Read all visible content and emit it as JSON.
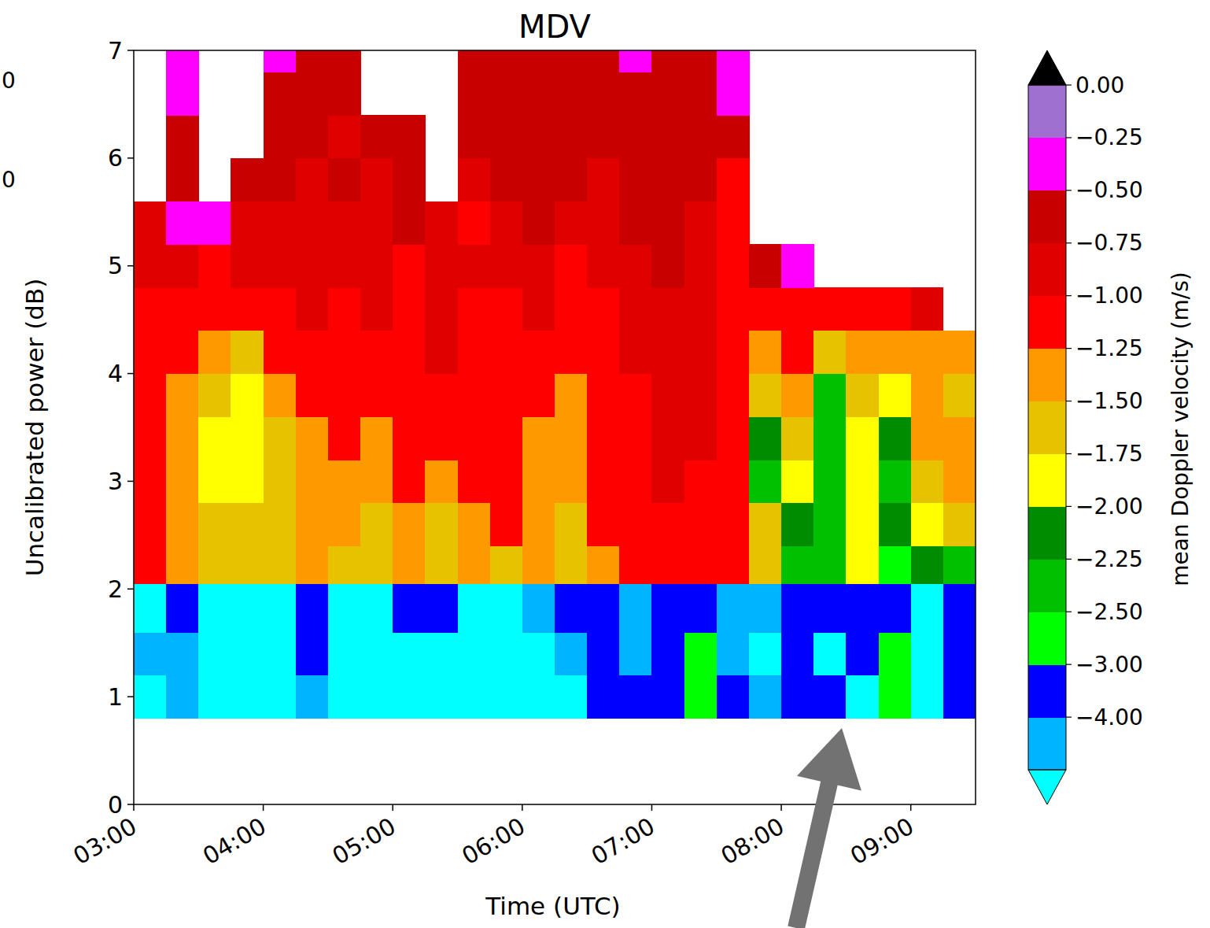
{
  "chart_data": {
    "type": "heatmap",
    "title": "MDV",
    "x_label": "Time (UTC)",
    "y_label": "Uncalibrated power (dB)",
    "xlim": [
      3,
      9.5
    ],
    "ylim": [
      0,
      7
    ],
    "xticks": [
      {
        "value": 3,
        "label": "03:00"
      },
      {
        "value": 4,
        "label": "04:00"
      },
      {
        "value": 5,
        "label": "05:00"
      },
      {
        "value": 6,
        "label": "06:00"
      },
      {
        "value": 7,
        "label": "07:00"
      },
      {
        "value": 8,
        "label": "08:00"
      },
      {
        "value": 9,
        "label": "09:00"
      }
    ],
    "yticks": [
      0,
      1,
      2,
      3,
      4,
      5,
      6,
      7
    ],
    "x_edges": [
      3,
      3.25,
      3.5,
      3.75,
      4,
      4.25,
      4.5,
      4.75,
      5,
      5.25,
      5.5,
      5.75,
      6,
      6.25,
      6.5,
      6.75,
      7,
      7.25,
      7.5,
      7.75,
      8,
      8.25,
      8.5,
      8.75,
      9,
      9.25,
      9.5
    ],
    "y_edges": [
      0.8,
      1.2,
      1.6,
      2.05,
      2.4,
      2.8,
      3.2,
      3.6,
      4.0,
      4.4,
      4.8,
      5.2,
      5.6,
      6.0,
      6.4,
      6.8,
      7.0
    ],
    "cells": [
      [
        -5.5,
        -4.5,
        -5.5,
        -5.5,
        -5.5,
        -4.5,
        -5.5,
        -5.5,
        -5.5,
        -5.5,
        -5.5,
        -5.5,
        -5.5,
        -5.5,
        -3.5,
        -3.5,
        -3.5,
        -2.75,
        -3.5,
        -4.5,
        -3.5,
        -3.5,
        -5.5,
        -2.75,
        -5.5,
        -3.5
      ],
      [
        -4.5,
        -4.5,
        -5.5,
        -5.5,
        -5.5,
        -3.5,
        -5.5,
        -5.5,
        -5.5,
        -5.5,
        -5.5,
        -5.5,
        -5.5,
        -4.5,
        -3.5,
        -4.5,
        -3.5,
        -2.75,
        -4.5,
        -5.5,
        -3.5,
        -5.5,
        -3.5,
        -2.75,
        -5.5,
        -3.5
      ],
      [
        -5.5,
        -3.5,
        -5.5,
        -5.5,
        -5.5,
        -3.5,
        -5.5,
        -5.5,
        -3.5,
        -3.5,
        -5.5,
        -5.5,
        -4.5,
        -3.5,
        -3.5,
        -4.5,
        -3.5,
        -3.5,
        -4.5,
        -4.5,
        -3.5,
        -3.5,
        -3.5,
        -3.5,
        -5.5,
        -3.5
      ],
      [
        -1.1,
        -1.4,
        -1.6,
        -1.6,
        -1.6,
        -1.4,
        -1.6,
        -1.6,
        -1.4,
        -1.6,
        -1.4,
        -1.6,
        -1.4,
        -1.6,
        -1.4,
        -1.1,
        -1.1,
        -1.1,
        -1.1,
        -1.6,
        -2.4,
        -2.4,
        -1.9,
        -2.75,
        -2.1,
        -2.4
      ],
      [
        -1.1,
        -1.4,
        -1.6,
        -1.6,
        -1.6,
        -1.4,
        -1.4,
        -1.6,
        -1.4,
        -1.6,
        -1.4,
        -1.1,
        -1.4,
        -1.6,
        -1.1,
        -1.1,
        -1.1,
        -1.1,
        -1.1,
        -1.6,
        -2.1,
        -2.4,
        -1.9,
        -2.1,
        -1.9,
        -1.6
      ],
      [
        -1.1,
        -1.4,
        -1.9,
        -1.9,
        -1.6,
        -1.4,
        -1.4,
        -1.4,
        -1.1,
        -1.4,
        -1.1,
        -1.1,
        -1.4,
        -1.4,
        -1.1,
        -1.1,
        -0.9,
        -1.1,
        -1.1,
        -2.4,
        -1.9,
        -2.4,
        -1.9,
        -2.4,
        -1.6,
        -1.4
      ],
      [
        -1.1,
        -1.4,
        -1.9,
        -1.9,
        -1.6,
        -1.4,
        -1.1,
        -1.4,
        -1.1,
        -1.1,
        -1.1,
        -1.1,
        -1.4,
        -1.4,
        -1.1,
        -1.1,
        -0.9,
        -0.9,
        -1.1,
        -2.1,
        -1.6,
        -2.4,
        -1.9,
        -2.1,
        -1.4,
        -1.4
      ],
      [
        -1.1,
        -1.4,
        -1.6,
        -1.9,
        -1.4,
        -1.1,
        -1.1,
        -1.1,
        -1.1,
        -1.1,
        -1.1,
        -1.1,
        -1.1,
        -1.4,
        -1.1,
        -1.1,
        -0.9,
        -0.9,
        -1.1,
        -1.6,
        -1.4,
        -2.4,
        -1.6,
        -1.9,
        -1.4,
        -1.6
      ],
      [
        -1.1,
        -1.1,
        -1.4,
        -1.6,
        -1.1,
        -1.1,
        -1.1,
        -1.1,
        -1.1,
        -0.9,
        -1.1,
        -1.1,
        -1.1,
        -1.1,
        -1.1,
        -0.9,
        -0.9,
        -0.9,
        -1.1,
        -1.4,
        -1.1,
        -1.6,
        -1.4,
        -1.4,
        -1.4,
        -1.4
      ],
      [
        -1.1,
        -1.1,
        -1.1,
        -1.1,
        -1.1,
        -0.9,
        -1.1,
        -0.9,
        -1.1,
        -0.9,
        -1.1,
        -1.1,
        -0.9,
        -1.1,
        -1.1,
        -0.9,
        -0.9,
        -0.9,
        -1.1,
        -1.1,
        -1.1,
        -1.1,
        -1.1,
        -1.1,
        -0.9,
        null
      ],
      [
        -0.9,
        -0.9,
        -1.1,
        -0.9,
        -0.9,
        -0.9,
        -0.9,
        -0.9,
        -1.1,
        -0.9,
        -0.9,
        -0.9,
        -0.9,
        -1.1,
        -0.9,
        -0.9,
        -0.6,
        -0.9,
        -1.1,
        -0.6,
        -0.4,
        null,
        null,
        null,
        null,
        null
      ],
      [
        -0.9,
        -0.4,
        -0.4,
        -0.9,
        -0.9,
        -0.9,
        -0.9,
        -0.9,
        -0.6,
        -0.9,
        -1.1,
        -0.9,
        -0.6,
        -0.9,
        -0.9,
        -0.6,
        -0.6,
        -0.9,
        -1.1,
        null,
        null,
        null,
        null,
        null,
        null,
        null
      ],
      [
        null,
        -0.6,
        null,
        -0.6,
        -0.6,
        -0.9,
        -0.6,
        -0.9,
        -0.6,
        null,
        -0.9,
        -0.6,
        -0.6,
        -0.6,
        -0.9,
        -0.6,
        -0.6,
        -0.6,
        -1.1,
        null,
        null,
        null,
        null,
        null,
        null,
        null
      ],
      [
        null,
        -0.6,
        null,
        null,
        -0.6,
        -0.6,
        -0.9,
        -0.6,
        -0.6,
        null,
        -0.6,
        -0.6,
        -0.6,
        -0.6,
        -0.6,
        -0.6,
        -0.6,
        -0.6,
        -0.6,
        null,
        null,
        null,
        null,
        null,
        null,
        null
      ],
      [
        null,
        -0.4,
        null,
        null,
        -0.6,
        -0.6,
        -0.6,
        null,
        null,
        null,
        -0.6,
        -0.6,
        -0.6,
        -0.6,
        -0.6,
        -0.6,
        -0.6,
        -0.6,
        -0.4,
        null,
        null,
        null,
        null,
        null,
        null,
        null
      ],
      [
        null,
        -0.4,
        null,
        null,
        -0.4,
        -0.6,
        -0.6,
        null,
        null,
        null,
        -0.6,
        -0.6,
        -0.6,
        -0.6,
        -0.6,
        -0.4,
        -0.6,
        -0.6,
        -0.4,
        null,
        null,
        null,
        null,
        null,
        null,
        null
      ]
    ],
    "colorbar": {
      "label": "mean Doppler velocity (m/s)",
      "levels": [
        -5,
        -4,
        -3,
        -2.5,
        -2.25,
        -2,
        -1.75,
        -1.5,
        -1.25,
        -1,
        -0.75,
        -0.5,
        -0.25,
        0
      ],
      "colors": [
        "#00ffff",
        "#00b4ff",
        "#0000ff",
        "#00ff00",
        "#00c000",
        "#008c00",
        "#ffff00",
        "#e6c200",
        "#ff9900",
        "#ff0000",
        "#e00000",
        "#c80000",
        "#ff00ff",
        "#a070d0",
        "#000000"
      ],
      "ticks": [
        {
          "value": 0,
          "label": "0.00"
        },
        {
          "value": -0.25,
          "label": "−0.25"
        },
        {
          "value": -0.5,
          "label": "−0.50"
        },
        {
          "value": -0.75,
          "label": "−0.75"
        },
        {
          "value": -1,
          "label": "−1.00"
        },
        {
          "value": -1.25,
          "label": "−1.25"
        },
        {
          "value": -1.5,
          "label": "−1.50"
        },
        {
          "value": -1.75,
          "label": "−1.75"
        },
        {
          "value": -2,
          "label": "−2.00"
        },
        {
          "value": -2.25,
          "label": "−2.25"
        },
        {
          "value": -2.5,
          "label": "−2.50"
        },
        {
          "value": -3,
          "label": "−3.00"
        },
        {
          "value": -4,
          "label": "−4.00"
        }
      ]
    },
    "edge_texts": [
      "0",
      "0"
    ]
  }
}
